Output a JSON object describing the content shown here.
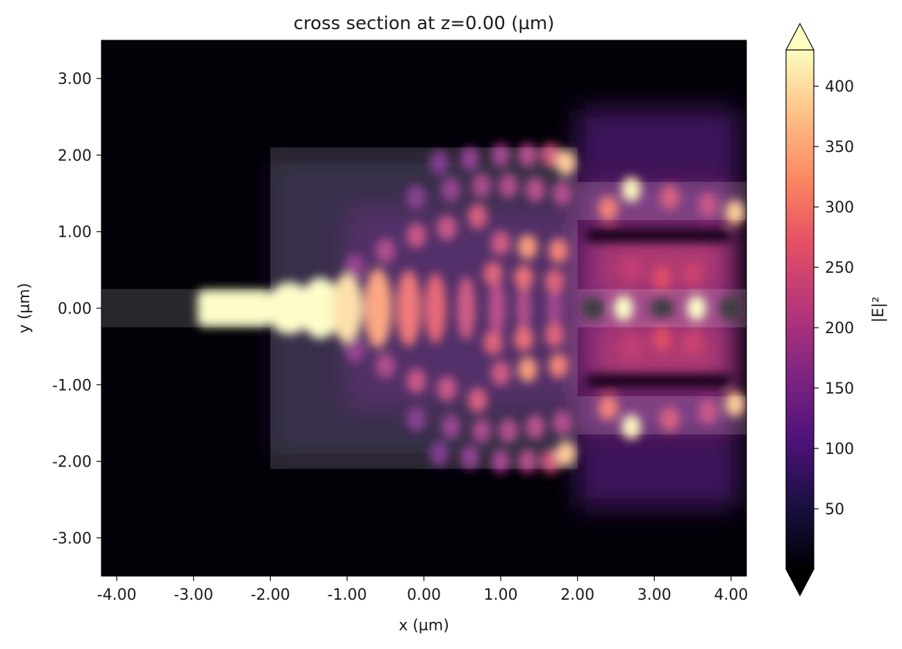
{
  "chart_data": {
    "type": "heatmap",
    "title": "cross section at z=0.00 (µm)",
    "xlabel": "x (µm)",
    "ylabel": "y (µm)",
    "xlim": [
      -4.2,
      4.2
    ],
    "ylim": [
      -3.5,
      3.5
    ],
    "x_ticks": [
      -4,
      -3,
      -2,
      -1,
      0,
      1,
      2,
      3,
      4
    ],
    "x_tick_labels": [
      "-4.00",
      "-3.00",
      "-2.00",
      "-1.00",
      "0.00",
      "1.00",
      "2.00",
      "3.00",
      "4.00"
    ],
    "y_ticks": [
      3,
      2,
      1,
      0,
      -1,
      -2,
      -3
    ],
    "y_tick_labels": [
      "3.00",
      "2.00",
      "1.00",
      "0.00",
      "-1.00",
      "-2.00",
      "-3.00"
    ],
    "colorbar": {
      "label": "|E|²",
      "min": 0,
      "max": 430,
      "ticks": [
        50,
        100,
        150,
        200,
        250,
        300,
        350,
        400
      ],
      "tick_labels": [
        "50",
        "100",
        "150",
        "200",
        "250",
        "300",
        "350",
        "400"
      ],
      "colormap": "magma",
      "extend": "both"
    },
    "structures": [
      {
        "name": "input-waveguide",
        "x": [
          -4.2,
          -2.0
        ],
        "y": [
          -0.25,
          0.25
        ]
      },
      {
        "name": "mmi-region",
        "x": [
          -2.0,
          2.0
        ],
        "y": [
          -2.1,
          2.1
        ]
      },
      {
        "name": "output-waveguide-top",
        "x": [
          2.0,
          4.2
        ],
        "y": [
          1.15,
          1.65
        ]
      },
      {
        "name": "output-waveguide-middle",
        "x": [
          2.0,
          4.2
        ],
        "y": [
          -0.25,
          0.25
        ]
      },
      {
        "name": "output-waveguide-bottom",
        "x": [
          2.0,
          4.2
        ],
        "y": [
          -1.65,
          -1.15
        ]
      }
    ],
    "hotspots": [
      {
        "x": -2.5,
        "y": 0.0,
        "value": 430
      },
      {
        "x": -1.6,
        "y": 0.0,
        "value": 430
      },
      {
        "x": -1.1,
        "y": 0.0,
        "value": 420
      },
      {
        "x": -0.5,
        "y": 0.0,
        "value": 360
      },
      {
        "x": 0.15,
        "y": 0.0,
        "value": 300
      },
      {
        "x": 1.35,
        "y": 0.8,
        "value": 330
      },
      {
        "x": 1.35,
        "y": -0.8,
        "value": 330
      },
      {
        "x": 1.75,
        "y": 0.75,
        "value": 300
      },
      {
        "x": 1.75,
        "y": -0.75,
        "value": 300
      },
      {
        "x": 1.85,
        "y": 1.9,
        "value": 380
      },
      {
        "x": 1.85,
        "y": -1.9,
        "value": 380
      },
      {
        "x": 2.7,
        "y": 1.55,
        "value": 420
      },
      {
        "x": 2.7,
        "y": -1.55,
        "value": 420
      },
      {
        "x": 4.05,
        "y": 1.25,
        "value": 380
      },
      {
        "x": 4.05,
        "y": -1.25,
        "value": 380
      },
      {
        "x": 2.65,
        "y": 0.0,
        "value": 430
      },
      {
        "x": 3.6,
        "y": 0.0,
        "value": 430
      },
      {
        "x": 3.1,
        "y": 0.4,
        "value": 260
      },
      {
        "x": 3.1,
        "y": -0.4,
        "value": 260
      }
    ]
  }
}
